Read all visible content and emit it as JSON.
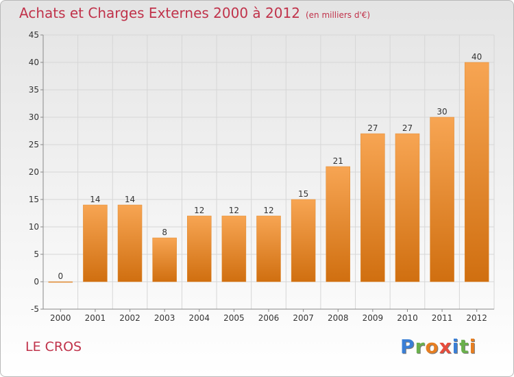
{
  "chart_data": {
    "type": "bar",
    "title": "Achats et Charges Externes 2000 à 2012",
    "subtitle": "(en milliers d'€)",
    "categories": [
      "2000",
      "2001",
      "2002",
      "2003",
      "2004",
      "2005",
      "2006",
      "2007",
      "2008",
      "2009",
      "2010",
      "2011",
      "2012"
    ],
    "values": [
      0,
      14,
      14,
      8,
      12,
      12,
      12,
      15,
      21,
      27,
      27,
      30,
      40
    ],
    "ylim": [
      -5,
      45
    ],
    "yticks": [
      -5,
      0,
      5,
      10,
      15,
      20,
      25,
      30,
      35,
      40,
      45
    ],
    "grid": true,
    "legend": "none"
  },
  "place": "LE CROS",
  "brand": {
    "letters": [
      {
        "ch": "P",
        "color": "#3a7fd6"
      },
      {
        "ch": "r",
        "color": "#6ab04c"
      },
      {
        "ch": "o",
        "color": "#e67e22"
      },
      {
        "ch": "x",
        "color": "#e74c3c"
      },
      {
        "ch": "i",
        "color": "#3a7fd6"
      },
      {
        "ch": "t",
        "color": "#6ab04c"
      },
      {
        "ch": "i",
        "color": "#e67e22"
      }
    ]
  },
  "colors": {
    "bar_top": "#f7a553",
    "bar_bottom": "#d06f10",
    "title": "#c0324a",
    "grid": "#d6d6d6"
  }
}
